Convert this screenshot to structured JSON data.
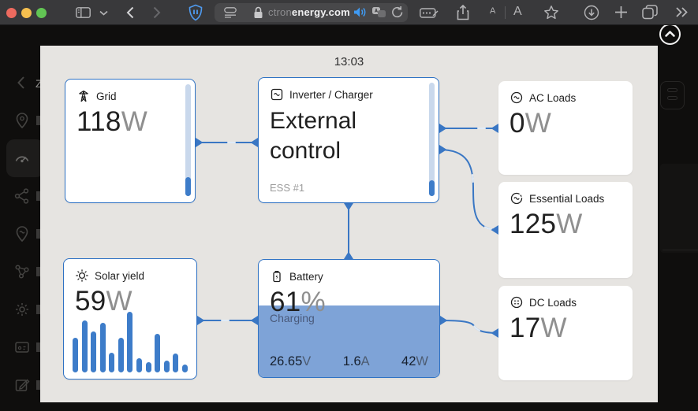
{
  "browser": {
    "url": {
      "faded": "ctron",
      "main": "energy.com"
    },
    "text_size_small": "A",
    "text_size_large": "A",
    "traffic_lights": {
      "close": "#ed6a5f",
      "minimize": "#f5bf4f",
      "maximize": "#62c554"
    }
  },
  "sidebar": {
    "site_fragment": "Z",
    "items": [
      "back",
      "location-pin",
      "dashboard-gauge",
      "share-nodes",
      "trip-pin",
      "network",
      "settings-gear",
      "remote-console",
      "edit-note"
    ],
    "active_item": "dashboard-gauge"
  },
  "modal": {
    "time": "13:03",
    "tiles": {
      "grid": {
        "label": "Grid",
        "value": "118",
        "unit": "W"
      },
      "inverter": {
        "label": "Inverter / Charger",
        "state": "External control",
        "sub": "ESS #1"
      },
      "ac": {
        "label": "AC Loads",
        "value": "0",
        "unit": "W"
      },
      "essential": {
        "label": "Essential Loads",
        "value": "125",
        "unit": "W"
      },
      "dc": {
        "label": "DC Loads",
        "value": "17",
        "unit": "W"
      },
      "solar": {
        "label": "Solar yield",
        "value": "59",
        "unit": "W",
        "bars": [
          52,
          78,
          62,
          75,
          30,
          52,
          92,
          22,
          16,
          58,
          18,
          28,
          12
        ]
      },
      "battery": {
        "label": "Battery",
        "soc": "61",
        "soc_unit": "%",
        "state": "Charging",
        "voltage": "26.65",
        "voltage_unit": "V",
        "current": "1.6",
        "current_unit": "A",
        "power": "42",
        "power_unit": "W"
      }
    }
  },
  "colors": {
    "accent_blue": "#3d7cc9",
    "tile_border_blue": "#2f72c4",
    "battery_fill": "#7ea3d7",
    "modal_bg": "#e6e4e1",
    "chrome_bg": "#39393b",
    "page_bg": "#0f0e0d",
    "shield_blue": "#4f9bf0",
    "speaker_blue": "#3f9bf4"
  }
}
